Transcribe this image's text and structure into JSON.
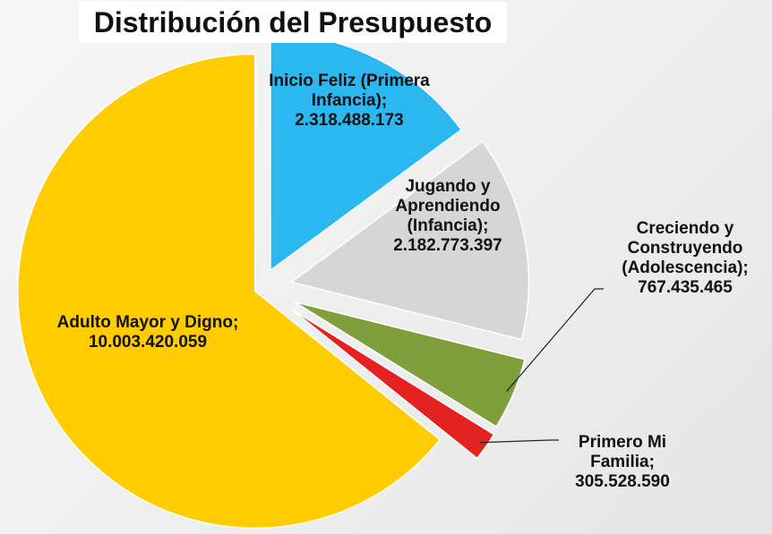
{
  "chart_data": {
    "type": "pie",
    "title": "Distribución del Presupuesto",
    "label_separator": ";",
    "categories": [
      "Inicio Feliz (Primera Infancia)",
      "Jugando y Aprendiendo (Infancia)",
      "Creciendo y Construyendo (Adolescencia)",
      "Primero Mi Familia",
      "Adulto Mayor y Digno"
    ],
    "values": [
      2318488173,
      2182773397,
      767435465,
      305528590,
      10003420059
    ],
    "value_labels": [
      "2.318.488.173",
      "2.182.773.397",
      "767.435.465",
      "305.528.590",
      "10.003.420.059"
    ],
    "colors": [
      "#2bb8f0",
      "#d6d6d6",
      "#7f9e3c",
      "#e52222",
      "#ffcc00"
    ]
  }
}
